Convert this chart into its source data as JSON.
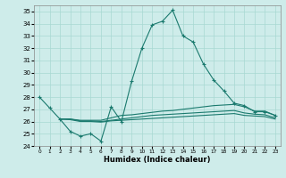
{
  "xlabel": "Humidex (Indice chaleur)",
  "xlim": [
    -0.5,
    23.5
  ],
  "ylim": [
    24,
    35.5
  ],
  "yticks": [
    24,
    25,
    26,
    27,
    28,
    29,
    30,
    31,
    32,
    33,
    34,
    35
  ],
  "xticks": [
    0,
    1,
    2,
    3,
    4,
    5,
    6,
    7,
    8,
    9,
    10,
    11,
    12,
    13,
    14,
    15,
    16,
    17,
    18,
    19,
    20,
    21,
    22,
    23
  ],
  "bg_color": "#ceecea",
  "grid_color": "#a8d8d3",
  "line_color": "#1a7a6e",
  "line1_x": [
    0,
    1,
    2,
    3,
    4,
    5,
    6,
    7,
    8,
    9,
    10,
    11,
    12,
    13,
    14,
    15,
    16,
    17,
    18,
    19,
    20,
    21,
    22,
    23
  ],
  "line1_y": [
    28.0,
    27.1,
    26.2,
    25.2,
    24.8,
    25.0,
    24.4,
    27.2,
    26.0,
    29.3,
    32.0,
    33.9,
    34.2,
    35.1,
    33.0,
    32.5,
    30.7,
    29.4,
    28.5,
    27.5,
    27.3,
    26.8,
    26.8,
    26.5
  ],
  "line2_x": [
    2,
    3,
    4,
    5,
    6,
    7,
    8,
    9,
    10,
    11,
    12,
    13,
    14,
    15,
    16,
    17,
    18,
    19,
    20,
    21,
    22,
    23
  ],
  "line2_y": [
    26.2,
    26.2,
    26.1,
    26.1,
    26.1,
    26.3,
    26.5,
    26.55,
    26.65,
    26.75,
    26.85,
    26.9,
    27.0,
    27.1,
    27.2,
    27.3,
    27.35,
    27.4,
    27.2,
    26.85,
    26.85,
    26.5
  ],
  "line3_x": [
    2,
    3,
    4,
    5,
    6,
    7,
    8,
    9,
    10,
    11,
    12,
    13,
    14,
    15,
    16,
    17,
    18,
    19,
    20,
    21,
    22,
    23
  ],
  "line3_y": [
    26.2,
    26.2,
    26.05,
    26.05,
    26.0,
    26.1,
    26.2,
    26.3,
    26.4,
    26.5,
    26.55,
    26.6,
    26.65,
    26.7,
    26.75,
    26.8,
    26.85,
    26.9,
    26.7,
    26.6,
    26.55,
    26.3
  ],
  "line4_x": [
    2,
    3,
    4,
    5,
    6,
    7,
    8,
    9,
    10,
    11,
    12,
    13,
    14,
    15,
    16,
    17,
    18,
    19,
    20,
    21,
    22,
    23
  ],
  "line4_y": [
    26.2,
    26.15,
    26.0,
    26.0,
    25.95,
    26.05,
    26.1,
    26.15,
    26.2,
    26.25,
    26.3,
    26.35,
    26.4,
    26.45,
    26.5,
    26.55,
    26.6,
    26.65,
    26.5,
    26.45,
    26.4,
    26.2
  ]
}
